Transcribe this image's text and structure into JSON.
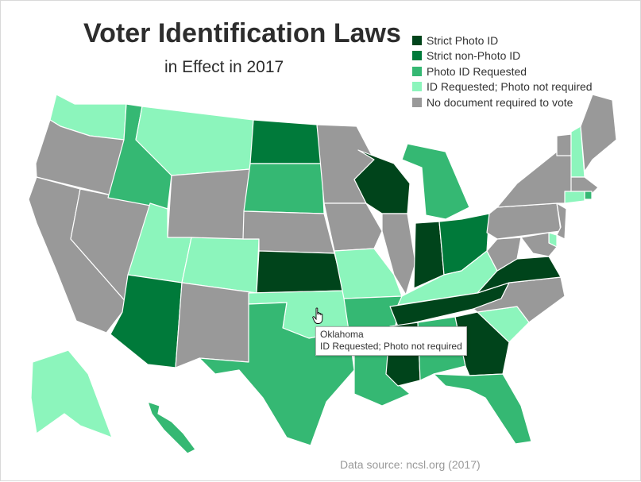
{
  "chart": {
    "title": "Voter Identification Laws",
    "subtitle": "in Effect in 2017",
    "source": "Data source: ncsl.org (2017)"
  },
  "legend": [
    {
      "label": "Strict Photo ID",
      "color": "#00441b"
    },
    {
      "label": "Strict non-Photo ID",
      "color": "#007a3a"
    },
    {
      "label": "Photo ID Requested",
      "color": "#35b873"
    },
    {
      "label": "ID Requested; Photo not required",
      "color": "#8cf5bc"
    },
    {
      "label": "No document required to vote",
      "color": "#999999"
    }
  ],
  "tooltip": {
    "state": "Oklahoma",
    "category": "ID Requested; Photo not required"
  },
  "cursor_icon": "hand-pointer-icon",
  "chart_data": {
    "type": "choropleth",
    "categories": [
      "Strict Photo ID",
      "Strict non-Photo ID",
      "Photo ID Requested",
      "ID Requested; Photo not required",
      "No document required to vote"
    ],
    "states": [
      {
        "state": "Washington",
        "category": "ID Requested; Photo not required"
      },
      {
        "state": "Oregon",
        "category": "No document required to vote"
      },
      {
        "state": "California",
        "category": "No document required to vote"
      },
      {
        "state": "Nevada",
        "category": "No document required to vote"
      },
      {
        "state": "Idaho",
        "category": "Photo ID Requested"
      },
      {
        "state": "Montana",
        "category": "ID Requested; Photo not required"
      },
      {
        "state": "Wyoming",
        "category": "No document required to vote"
      },
      {
        "state": "Utah",
        "category": "ID Requested; Photo not required"
      },
      {
        "state": "Colorado",
        "category": "ID Requested; Photo not required"
      },
      {
        "state": "Arizona",
        "category": "Strict non-Photo ID"
      },
      {
        "state": "New Mexico",
        "category": "No document required to vote"
      },
      {
        "state": "North Dakota",
        "category": "Strict non-Photo ID"
      },
      {
        "state": "South Dakota",
        "category": "Photo ID Requested"
      },
      {
        "state": "Nebraska",
        "category": "No document required to vote"
      },
      {
        "state": "Kansas",
        "category": "Strict Photo ID"
      },
      {
        "state": "Oklahoma",
        "category": "ID Requested; Photo not required"
      },
      {
        "state": "Texas",
        "category": "Photo ID Requested"
      },
      {
        "state": "Minnesota",
        "category": "No document required to vote"
      },
      {
        "state": "Iowa",
        "category": "No document required to vote"
      },
      {
        "state": "Missouri",
        "category": "ID Requested; Photo not required"
      },
      {
        "state": "Arkansas",
        "category": "Photo ID Requested"
      },
      {
        "state": "Louisiana",
        "category": "Photo ID Requested"
      },
      {
        "state": "Wisconsin",
        "category": "Strict Photo ID"
      },
      {
        "state": "Illinois",
        "category": "No document required to vote"
      },
      {
        "state": "Michigan",
        "category": "Photo ID Requested"
      },
      {
        "state": "Indiana",
        "category": "Strict Photo ID"
      },
      {
        "state": "Ohio",
        "category": "Strict non-Photo ID"
      },
      {
        "state": "Kentucky",
        "category": "ID Requested; Photo not required"
      },
      {
        "state": "Tennessee",
        "category": "Strict Photo ID"
      },
      {
        "state": "Mississippi",
        "category": "Strict Photo ID"
      },
      {
        "state": "Alabama",
        "category": "Photo ID Requested"
      },
      {
        "state": "Georgia",
        "category": "Strict Photo ID"
      },
      {
        "state": "Florida",
        "category": "Photo ID Requested"
      },
      {
        "state": "South Carolina",
        "category": "ID Requested; Photo not required"
      },
      {
        "state": "North Carolina",
        "category": "No document required to vote"
      },
      {
        "state": "Virginia",
        "category": "Strict Photo ID"
      },
      {
        "state": "West Virginia",
        "category": "No document required to vote"
      },
      {
        "state": "Pennsylvania",
        "category": "No document required to vote"
      },
      {
        "state": "New York",
        "category": "No document required to vote"
      },
      {
        "state": "Vermont",
        "category": "No document required to vote"
      },
      {
        "state": "New Hampshire",
        "category": "ID Requested; Photo not required"
      },
      {
        "state": "Maine",
        "category": "No document required to vote"
      },
      {
        "state": "Massachusetts",
        "category": "No document required to vote"
      },
      {
        "state": "Rhode Island",
        "category": "Photo ID Requested"
      },
      {
        "state": "Connecticut",
        "category": "ID Requested; Photo not required"
      },
      {
        "state": "New Jersey",
        "category": "No document required to vote"
      },
      {
        "state": "Delaware",
        "category": "ID Requested; Photo not required"
      },
      {
        "state": "Maryland",
        "category": "No document required to vote"
      },
      {
        "state": "Alaska",
        "category": "ID Requested; Photo not required"
      },
      {
        "state": "Hawaii",
        "category": "Photo ID Requested"
      }
    ]
  }
}
